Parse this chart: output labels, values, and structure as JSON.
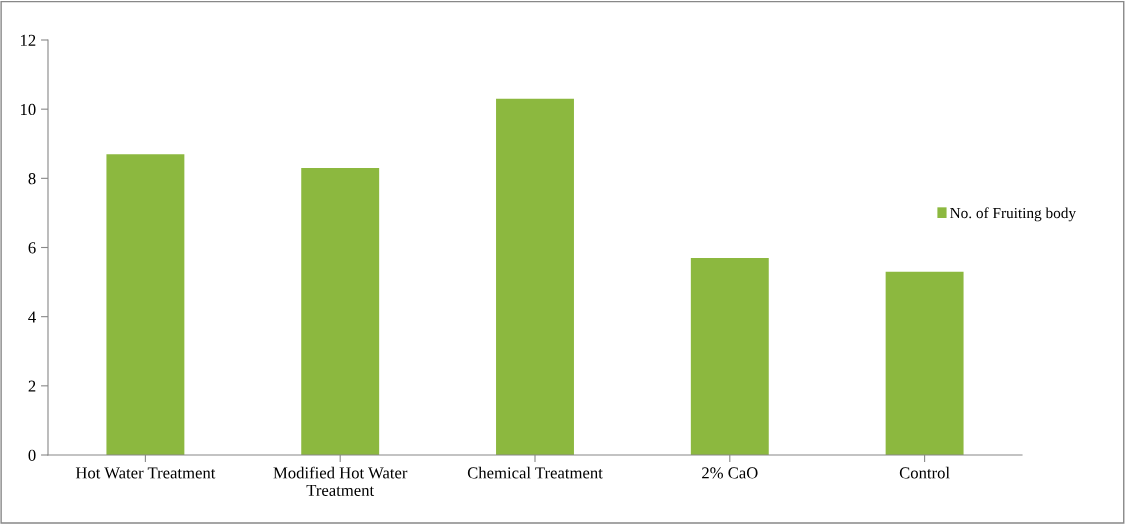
{
  "chart_data": {
    "type": "bar",
    "categories": [
      "Hot Water Treatment",
      "Modified Hot Water\nTreatment",
      "Chemical Treatment",
      "2% CaO",
      "Control"
    ],
    "series": [
      {
        "name": "No. of Fruiting body",
        "color": "#8cb83f",
        "values": [
          8.7,
          8.3,
          10.3,
          5.7,
          5.3
        ]
      }
    ],
    "ylim": [
      0,
      12
    ],
    "yticks": [
      0,
      2,
      4,
      6,
      8,
      10,
      12
    ],
    "grid": false,
    "legend": "right"
  }
}
